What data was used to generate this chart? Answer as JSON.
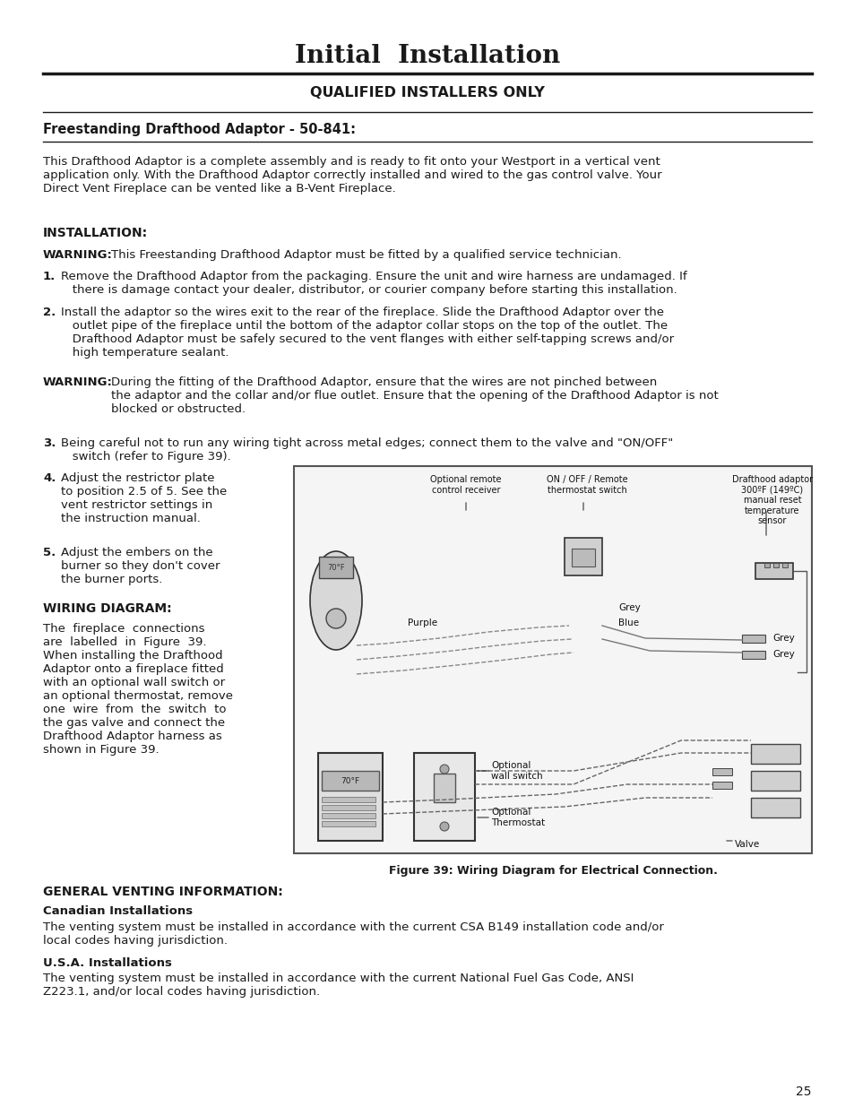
{
  "bg_color": "#ffffff",
  "text_color": "#1a1a1a",
  "page_number": "25",
  "title": "Initial  Installation",
  "subtitle": "QUALIFIED INSTALLERS ONLY",
  "section1_header": "Freestanding Drafthood Adaptor - 50-841:",
  "section1_body": "This Drafthood Adaptor is a complete assembly and is ready to fit onto your Westport in a vertical vent\napplication only. With the Drafthood Adaptor correctly installed and wired to the gas control valve. Your\nDirect Vent Fireplace can be vented like a B-Vent Fireplace.",
  "installation_header": "INSTALLATION:",
  "warning1_bold": "WARNING:",
  "warning1_text": "This Freestanding Drafthood Adaptor must be fitted by a qualified service technician.",
  "step2_text": "Install the adaptor so the wires exit to the rear of the fireplace. Slide the Drafthood Adaptor over the\n   outlet pipe of the fireplace until the bottom of the adaptor collar stops on the top of the outlet. The\n   Drafthood Adaptor must be safely secured to the vent flanges with either self-tapping screws and/or\n   high temperature sealant.",
  "warning2_text": "During the fitting of the Drafthood Adaptor, ensure that the wires are not pinched between\nthe adaptor and the collar and/or flue outlet. Ensure that the opening of the Drafthood Adaptor is not\nblocked or obstructed.",
  "step3_text": "Being careful not to run any wiring tight across metal edges; connect them to the valve and \"ON/OFF\"\n   switch (refer to Figure 39).",
  "step4_text": "Adjust the restrictor plate\nto position 2.5 of 5. See the\nvent restrictor settings in\nthe instruction manual.",
  "step5_text": "Adjust the embers on the\nburner so they don't cover\nthe burner ports.",
  "wiring_header": "WIRING DIAGRAM:",
  "wiring_body": "The  fireplace  connections\nare  labelled  in  Figure  39.\nWhen installing the Drafthood\nAdaptor onto a fireplace fitted\nwith an optional wall switch or\nan optional thermostat, remove\none  wire  from  the  switch  to\nthe gas valve and connect the\nDrafthood Adaptor harness as\nshown in Figure 39.",
  "general_header": "GENERAL VENTING INFORMATION:",
  "canadian_header": "Canadian Installations",
  "canadian_body": "The venting system must be installed in accordance with the current CSA B149 installation code and/or\nlocal codes having jurisdiction.",
  "usa_header": "U.S.A. Installations",
  "usa_body": "The venting system must be installed in accordance with the current National Fuel Gas Code, ANSI\nZ223.1, and/or local codes having jurisdiction.",
  "fig_caption": "Figure 39: Wiring Diagram for Electrical Connection.",
  "step1_text": "Remove the Drafthood Adaptor from the packaging. Ensure the unit and wire harness are undamaged. If\n   there is damage contact your dealer, distributor, or courier company before starting this installation."
}
